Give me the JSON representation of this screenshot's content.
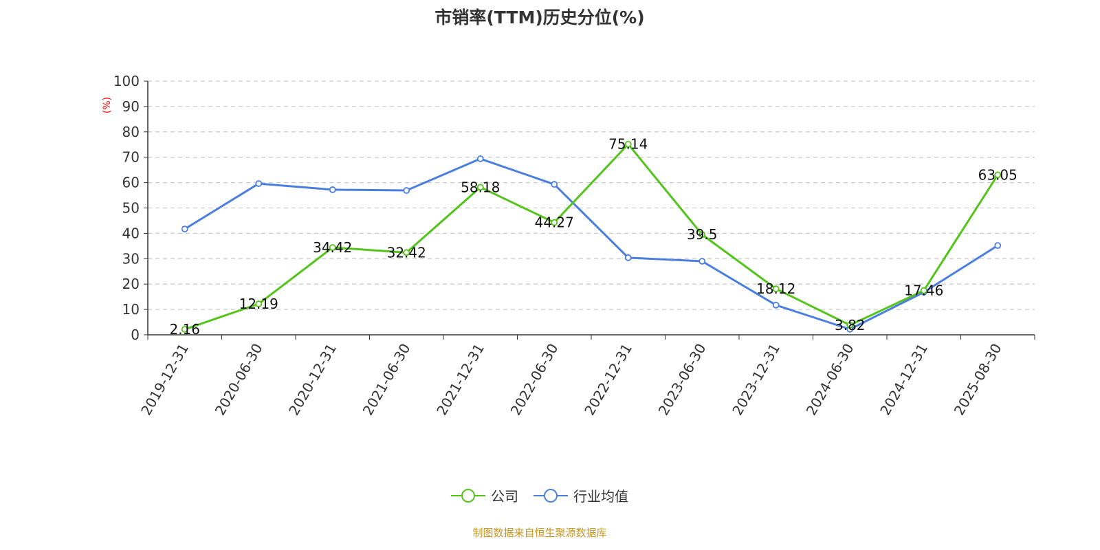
{
  "chart_data": {
    "type": "line",
    "title": "市销率(TTM)历史分位(%)",
    "ylabel": "(%)",
    "xlabel": "",
    "ylim": [
      0,
      100
    ],
    "yticks": [
      "0",
      "10",
      "20",
      "30",
      "40",
      "50",
      "60",
      "70",
      "80",
      "90",
      "100"
    ],
    "grid": true,
    "legend_position": "bottom",
    "categories": [
      "2019-12-31",
      "2020-06-30",
      "2020-12-31",
      "2021-06-30",
      "2021-12-31",
      "2022-06-30",
      "2022-12-31",
      "2023-06-30",
      "2023-12-31",
      "2024-06-30",
      "2024-12-31",
      "2025-08-30"
    ],
    "series": [
      {
        "name": "公司",
        "color": "#52c41a",
        "labeled": true,
        "values": [
          2.16,
          12.19,
          34.42,
          32.42,
          58.18,
          44.27,
          75.14,
          39.5,
          18.12,
          3.82,
          17.46,
          63.05
        ],
        "labels": [
          "2.16",
          "12.19",
          "34.42",
          "32.42",
          "58.18",
          "44.27",
          "75.14",
          "39.5",
          "18.12",
          "3.82",
          "17.46",
          "63.05"
        ]
      },
      {
        "name": "行业均值",
        "color": "#4a7fe0",
        "labeled": false,
        "values": [
          41.7,
          59.6,
          57.2,
          56.9,
          69.4,
          59.3,
          30.4,
          29.0,
          11.7,
          2.2,
          16.8,
          35.2
        ]
      }
    ]
  },
  "source": "制图数据来自恒生聚源数据库"
}
